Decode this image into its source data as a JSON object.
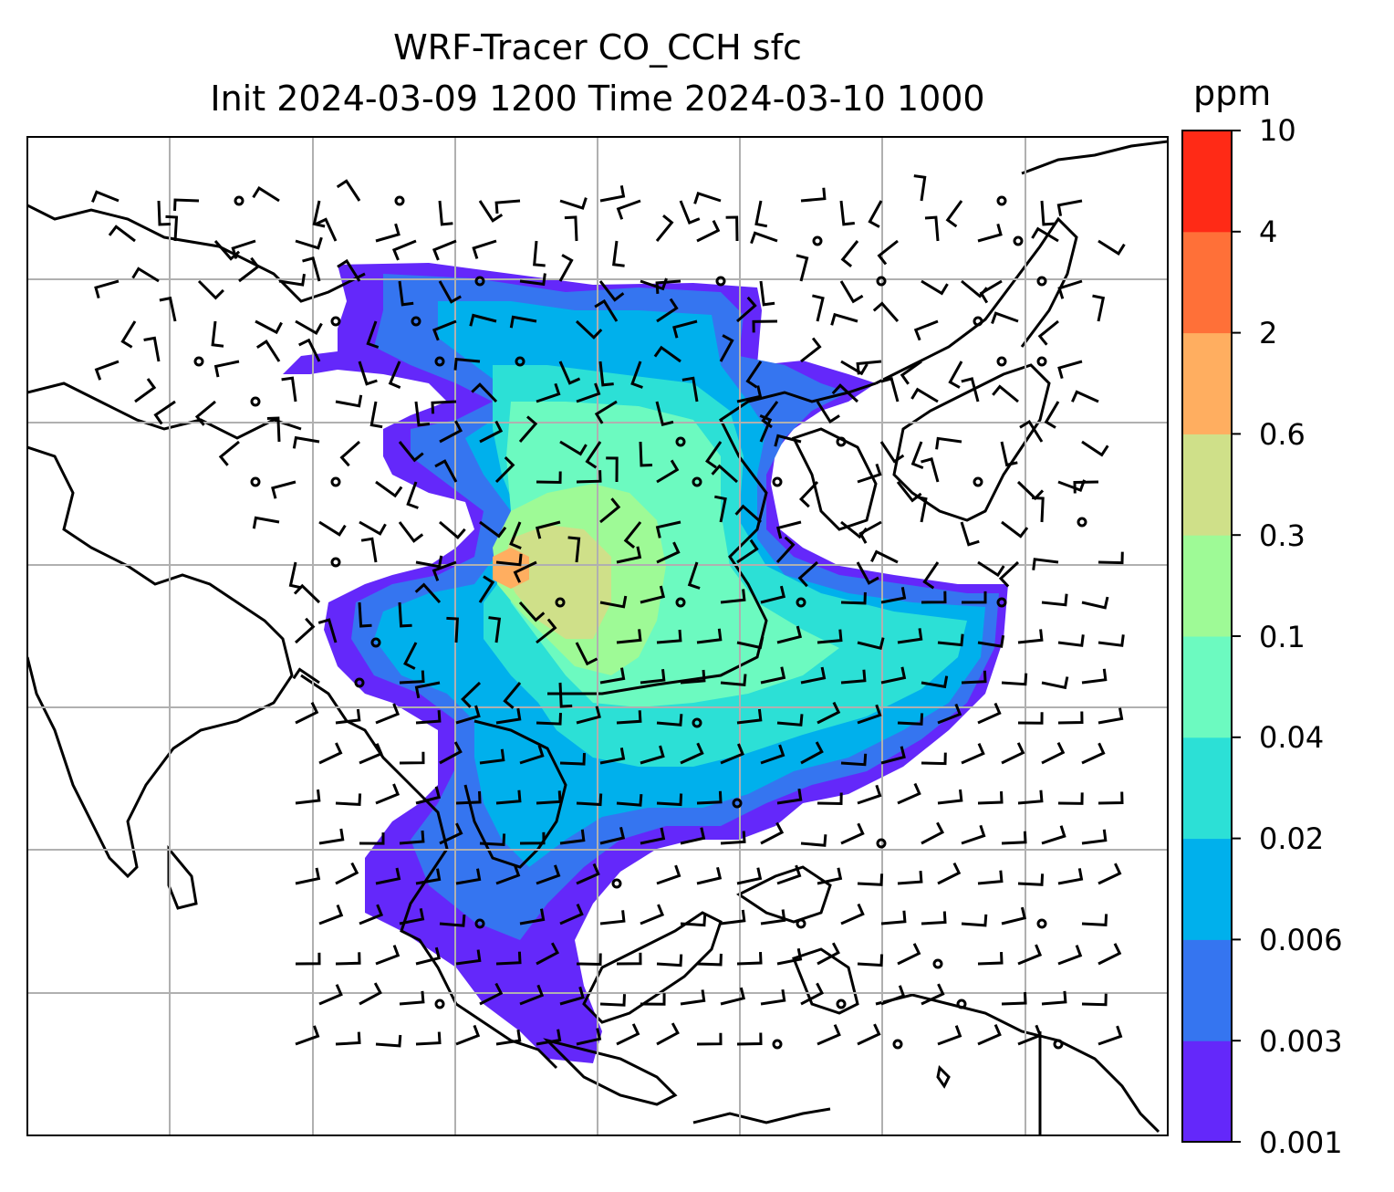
{
  "title_line1": "WRF-Tracer CO_CCH sfc",
  "title_line2": "Init 2024-03-09 1200 Time 2024-03-10 1000",
  "colorbar": {
    "unit": "ppm",
    "levels": [
      "0.001",
      "0.003",
      "0.006",
      "0.02",
      "0.04",
      "0.1",
      "0.3",
      "0.6",
      "2",
      "4",
      "10"
    ],
    "colors": [
      "#6428fa",
      "#3575f0",
      "#00b0ec",
      "#2ce0d6",
      "#6cfac0",
      "#9efa96",
      "#cfe089",
      "#ffae60",
      "#ff7038",
      "#ff2a16"
    ]
  },
  "map": {
    "field": "CO_CCH surface tracer concentration",
    "overlay": "wind barbs",
    "grid": true
  }
}
